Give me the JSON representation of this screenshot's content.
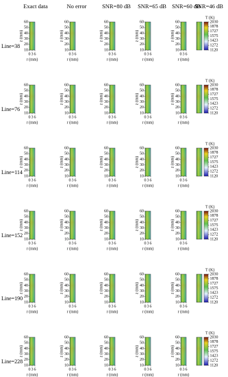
{
  "header": {
    "columns": [
      "Exact data",
      "No error",
      "SNR=80 dB",
      "SNR=65 dB",
      "SNR=60 dB",
      "SNR=46 dB"
    ]
  },
  "rows": [
    "Line=38",
    "Line=76",
    "Line=114",
    "Line=152",
    "Line=190",
    "Line=228"
  ],
  "axes": {
    "ylabel": "z (mm)",
    "xlabel": "r (mm)",
    "yticks": [
      10,
      20,
      30,
      40,
      50,
      60
    ],
    "xticks": [
      0,
      3,
      6
    ]
  },
  "colorbar": {
    "title": "T (K)",
    "ticks": [
      2030,
      1878,
      1727,
      1575,
      1423,
      1272,
      1120
    ]
  }
}
